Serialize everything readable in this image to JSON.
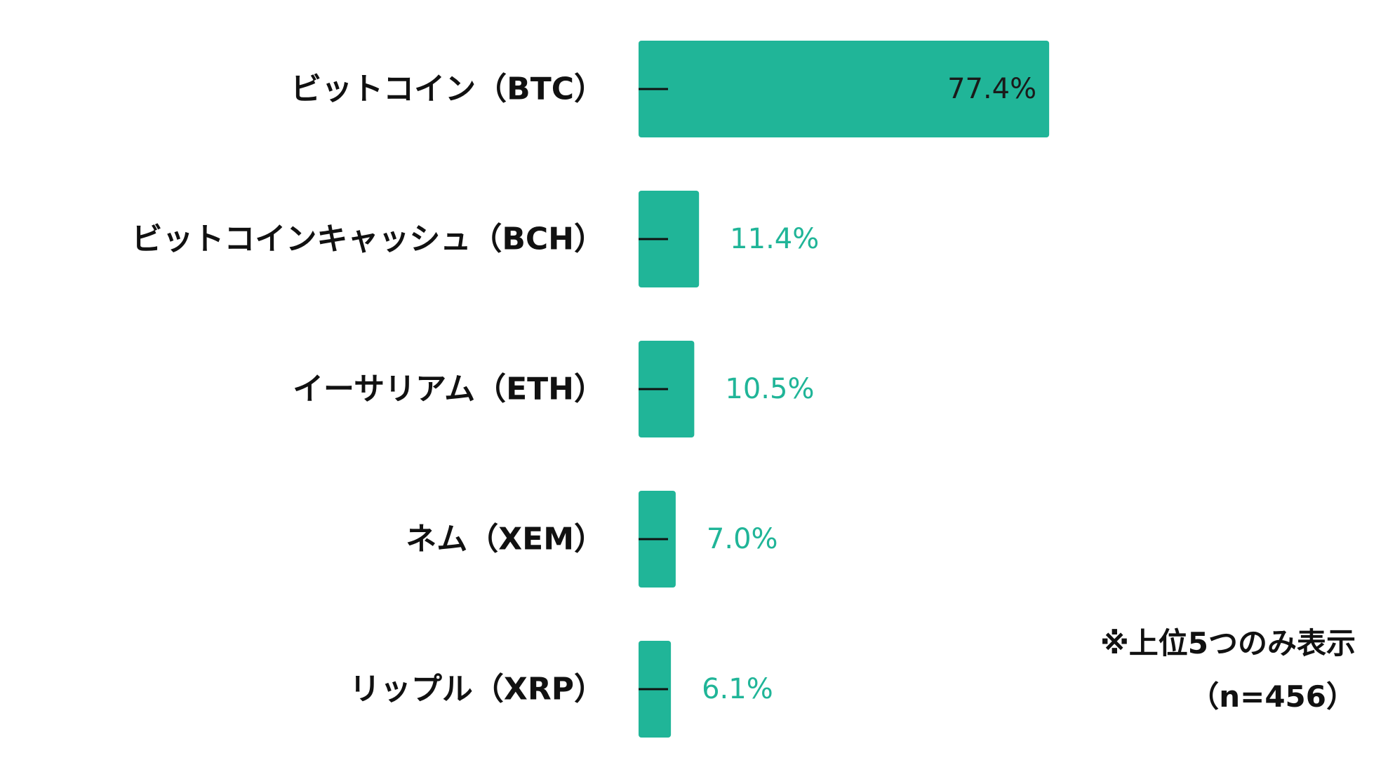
{
  "chart_data": {
    "type": "bar",
    "orientation": "horizontal",
    "categories": [
      "ビットコイン（BTC）",
      "ビットコインキャッシュ（BCH）",
      "イーサリアム（ETH）",
      "ネム（XEM）",
      "リップル（XRP）"
    ],
    "values": [
      77.4,
      11.4,
      10.5,
      7.0,
      6.1
    ],
    "value_labels": [
      "77.4%",
      "11.4%",
      "10.5%",
      "7.0%",
      "6.1%"
    ],
    "unit": "%",
    "xlim": [
      0,
      100
    ],
    "grid": false,
    "bar_color": "#20B598",
    "inside_label_color": "#1a1a1a",
    "outside_label_color": "#20B598"
  },
  "notes": {
    "line1": "※上位5つのみ表示",
    "line2": "（n=456）"
  }
}
